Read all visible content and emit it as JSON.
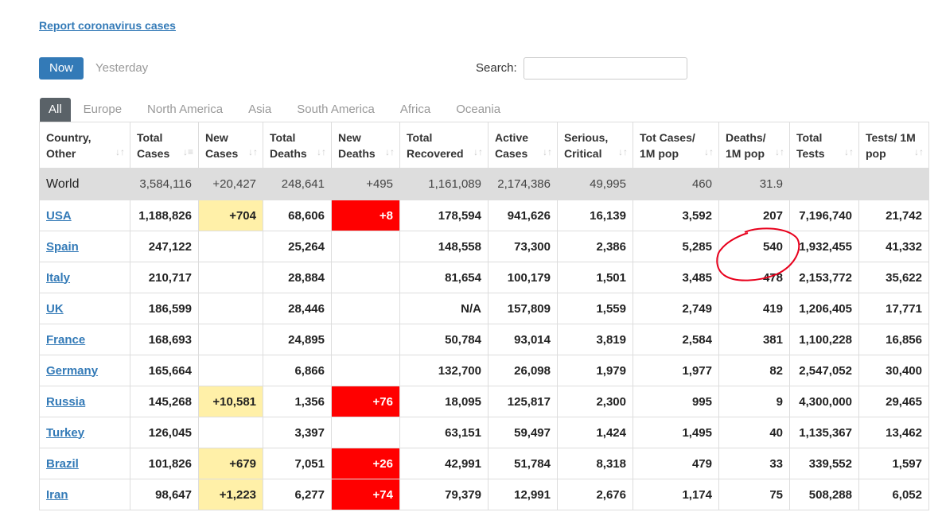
{
  "report_link": "Report coronavirus cases",
  "day_tabs": [
    {
      "label": "Now",
      "active": true
    },
    {
      "label": "Yesterday",
      "active": false
    }
  ],
  "search": {
    "label": "Search:",
    "value": "",
    "placeholder": ""
  },
  "region_tabs": [
    {
      "label": "All",
      "active": true
    },
    {
      "label": "Europe"
    },
    {
      "label": "North America"
    },
    {
      "label": "Asia"
    },
    {
      "label": "South America"
    },
    {
      "label": "Africa"
    },
    {
      "label": "Oceania"
    }
  ],
  "columns": [
    "Country, Other",
    "Total Cases",
    "New Cases",
    "Total Deaths",
    "New Deaths",
    "Total Recovered",
    "Active Cases",
    "Serious, Critical",
    "Tot Cases/ 1M pop",
    "Deaths/ 1M pop",
    "Total Tests",
    "Tests/ 1M pop"
  ],
  "world": [
    "World",
    "3,584,116",
    "+20,427",
    "248,641",
    "+495",
    "1,161,089",
    "2,174,386",
    "49,995",
    "460",
    "31.9",
    "",
    ""
  ],
  "rows": [
    [
      "USA",
      "1,188,826",
      "+704",
      "68,606",
      "+8",
      "178,594",
      "941,626",
      "16,139",
      "3,592",
      "207",
      "7,196,740",
      "21,742"
    ],
    [
      "Spain",
      "247,122",
      "",
      "25,264",
      "",
      "148,558",
      "73,300",
      "2,386",
      "5,285",
      "540",
      "1,932,455",
      "41,332"
    ],
    [
      "Italy",
      "210,717",
      "",
      "28,884",
      "",
      "81,654",
      "100,179",
      "1,501",
      "3,485",
      "478",
      "2,153,772",
      "35,622"
    ],
    [
      "UK",
      "186,599",
      "",
      "28,446",
      "",
      "N/A",
      "157,809",
      "1,559",
      "2,749",
      "419",
      "1,206,405",
      "17,771"
    ],
    [
      "France",
      "168,693",
      "",
      "24,895",
      "",
      "50,784",
      "93,014",
      "3,819",
      "2,584",
      "381",
      "1,100,228",
      "16,856"
    ],
    [
      "Germany",
      "165,664",
      "",
      "6,866",
      "",
      "132,700",
      "26,098",
      "1,979",
      "1,977",
      "82",
      "2,547,052",
      "30,400"
    ],
    [
      "Russia",
      "145,268",
      "+10,581",
      "1,356",
      "+76",
      "18,095",
      "125,817",
      "2,300",
      "995",
      "9",
      "4,300,000",
      "29,465"
    ],
    [
      "Turkey",
      "126,045",
      "",
      "3,397",
      "",
      "63,151",
      "59,497",
      "1,424",
      "1,495",
      "40",
      "1,135,367",
      "13,462"
    ],
    [
      "Brazil",
      "101,826",
      "+679",
      "7,051",
      "+26",
      "42,991",
      "51,784",
      "8,318",
      "479",
      "33",
      "339,552",
      "1,597"
    ],
    [
      "Iran",
      "98,647",
      "+1,223",
      "6,277",
      "+74",
      "79,379",
      "12,991",
      "2,676",
      "1,174",
      "75",
      "508,288",
      "6,052"
    ]
  ],
  "colors": {
    "link": "#337ab7",
    "new_cases_highlight": "#fff0a8",
    "new_deaths_highlight": "#ff0000",
    "annotation": "#e8001c"
  },
  "icons": {
    "sort": "sort-arrows-icon"
  }
}
